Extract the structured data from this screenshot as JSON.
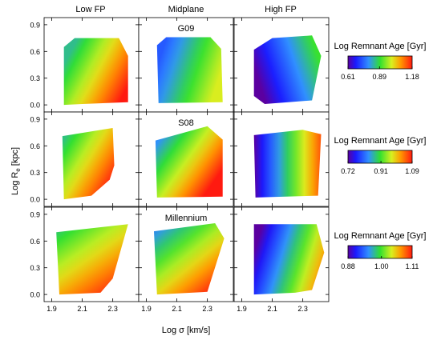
{
  "figure": {
    "columns": [
      "Low FP",
      "Midplane",
      "High FP"
    ],
    "ylabel_main": "Log R",
    "ylabel_sub": "e",
    "ylabel_unit": " [kpc]",
    "xlabel": "Log σ [km/s]",
    "yticks": [
      "0.0",
      "0.3",
      "0.6",
      "0.9"
    ],
    "xticks": [
      "1.9",
      "2.1",
      "2.3"
    ]
  },
  "chart_data": [
    {
      "type": "heatmap",
      "row": 0,
      "panel_label": "G09",
      "colorbar": {
        "title": "Log Remnant Age [Gyr]",
        "ticks": [
          "0.61",
          "0.89",
          "1.18"
        ],
        "min": 0.61,
        "max": 1.18
      },
      "xlim": [
        1.85,
        2.47
      ],
      "ylim": [
        -0.08,
        0.98
      ],
      "panels": [
        {
          "column": "Low FP",
          "value_low": 0.85,
          "value_high": 1.18
        },
        {
          "column": "Midplane",
          "value_low": 0.74,
          "value_high": 1.0
        },
        {
          "column": "High FP",
          "value_low": 0.61,
          "value_high": 0.9
        }
      ]
    },
    {
      "type": "heatmap",
      "row": 1,
      "panel_label": "S08",
      "colorbar": {
        "title": "Log Remnant Age [Gyr]",
        "ticks": [
          "0.72",
          "0.91",
          "1.09"
        ],
        "min": 0.72,
        "max": 1.09
      },
      "xlim": [
        1.85,
        2.47
      ],
      "ylim": [
        -0.08,
        0.98
      ],
      "panels": [
        {
          "column": "Low FP",
          "value_low": 0.88,
          "value_high": 1.09
        },
        {
          "column": "Midplane",
          "value_low": 0.84,
          "value_high": 1.09
        },
        {
          "column": "High FP",
          "value_low": 0.72,
          "value_high": 1.06
        }
      ]
    },
    {
      "type": "heatmap",
      "row": 2,
      "panel_label": "Millennium",
      "colorbar": {
        "title": "Log Remnant Age [Gyr]",
        "ticks": [
          "0.88",
          "1.00",
          "1.11"
        ],
        "min": 0.88,
        "max": 1.11
      },
      "xlim": [
        1.85,
        2.47
      ],
      "ylim": [
        -0.08,
        0.98
      ],
      "panels": [
        {
          "column": "Low FP",
          "value_low": 0.98,
          "value_high": 1.11
        },
        {
          "column": "Midplane",
          "value_low": 0.94,
          "value_high": 1.11
        },
        {
          "column": "High FP",
          "value_low": 0.88,
          "value_high": 1.08
        }
      ]
    }
  ]
}
